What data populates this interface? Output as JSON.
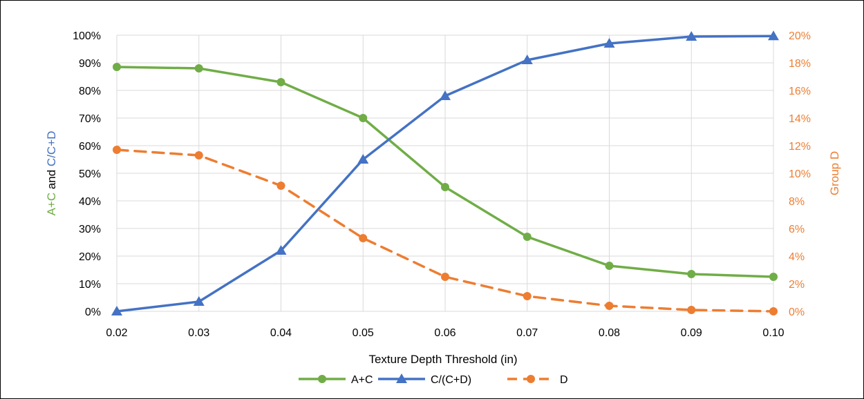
{
  "chart_data": {
    "type": "line",
    "x": [
      0.02,
      0.03,
      0.04,
      0.05,
      0.06,
      0.07,
      0.08,
      0.09,
      0.1
    ],
    "x_tick_labels": [
      "0.02",
      "0.03",
      "0.04",
      "0.05",
      "0.06",
      "0.07",
      "0.08",
      "0.09",
      "0.10"
    ],
    "xlabel": "Texture Depth Threshold (in)",
    "ylabel_left_parts": [
      {
        "text": "A+C",
        "color": "#70ad47"
      },
      {
        "text": " and ",
        "color": "#000000"
      },
      {
        "text": "C/C+D",
        "color": "#4472c4"
      }
    ],
    "ylabel_right": "Group D",
    "ylim_left": [
      0,
      100
    ],
    "ylim_right": [
      0,
      20
    ],
    "y_left_ticks": [
      {
        "value": 0,
        "label": "0%"
      },
      {
        "value": 10,
        "label": "10%"
      },
      {
        "value": 20,
        "label": "20%"
      },
      {
        "value": 30,
        "label": "30%"
      },
      {
        "value": 40,
        "label": "40%"
      },
      {
        "value": 50,
        "label": "50%"
      },
      {
        "value": 60,
        "label": "60%"
      },
      {
        "value": 70,
        "label": "70%"
      },
      {
        "value": 80,
        "label": "80%"
      },
      {
        "value": 90,
        "label": "90%"
      },
      {
        "value": 100,
        "label": "100%"
      }
    ],
    "y_right_ticks": [
      {
        "value": 0,
        "label": "0%"
      },
      {
        "value": 2,
        "label": "2%"
      },
      {
        "value": 4,
        "label": "4%"
      },
      {
        "value": 6,
        "label": "6%"
      },
      {
        "value": 8,
        "label": "8%"
      },
      {
        "value": 10,
        "label": "10%"
      },
      {
        "value": 12,
        "label": "12%"
      },
      {
        "value": 14,
        "label": "14%"
      },
      {
        "value": 16,
        "label": "16%"
      },
      {
        "value": 18,
        "label": "18%"
      },
      {
        "value": 20,
        "label": "20%"
      }
    ],
    "grid": true,
    "legend_position": "bottom",
    "right_axis_color": "#ed7d31",
    "series": [
      {
        "name": "A+C",
        "axis": "left",
        "color": "#70ad47",
        "marker": "circle",
        "dash": "solid",
        "values": [
          88.5,
          88,
          83,
          70,
          45,
          27,
          16.5,
          13.5,
          12.5
        ]
      },
      {
        "name": "C/(C+D)",
        "axis": "left",
        "color": "#4472c4",
        "marker": "triangle",
        "dash": "solid",
        "values": [
          0,
          3.5,
          22,
          55,
          78,
          91,
          97,
          99.5,
          99.7
        ]
      },
      {
        "name": "D",
        "axis": "right",
        "color": "#ed7d31",
        "marker": "circle",
        "dash": "dashed",
        "values": [
          11.7,
          11.3,
          9.1,
          5.3,
          2.5,
          1.1,
          0.4,
          0.1,
          0.0
        ]
      }
    ]
  }
}
